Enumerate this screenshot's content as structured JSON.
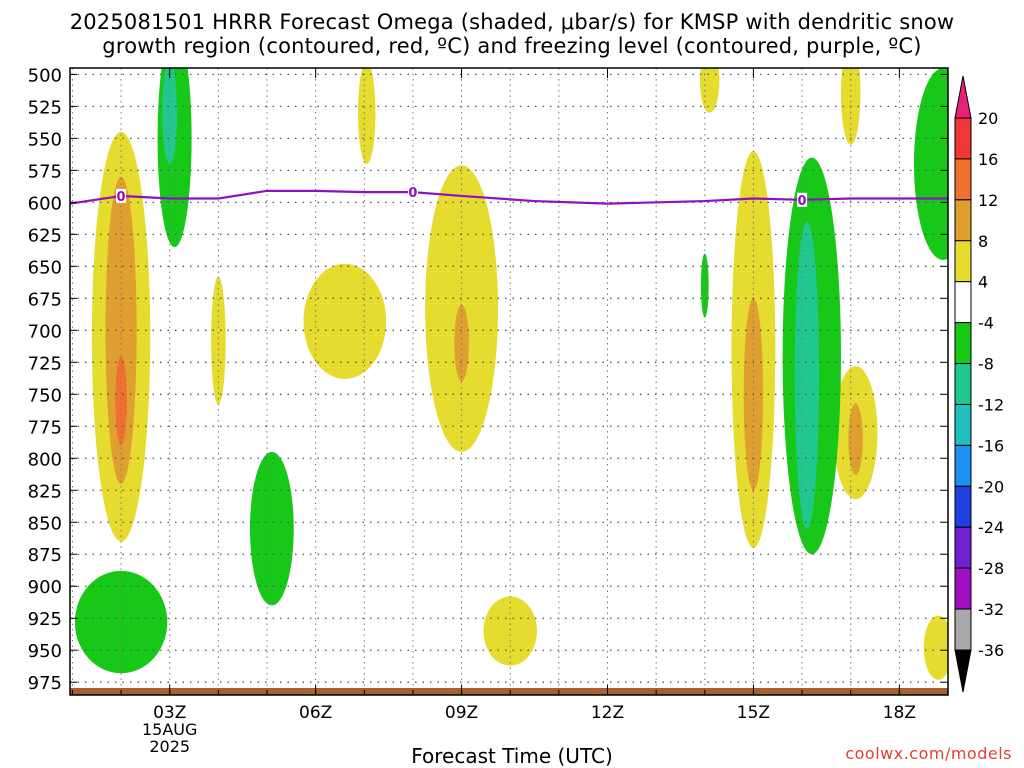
{
  "title_line1": "2025081501 HRRR Forecast Omega (shaded, μbar/s) for KMSP with dendritic snow",
  "title_line2": "growth region (contoured, red, ºC) and freezing level (contoured, purple, ºC)",
  "credit": "coolwx.com/models",
  "chart_data": {
    "type": "heatmap",
    "xlabel": "Forecast Time (UTC)",
    "ylabel": "",
    "x_range_hours_utc": [
      0.95,
      19.0
    ],
    "y_range_mb": [
      495,
      985
    ],
    "y_ticks": [
      500,
      525,
      550,
      575,
      600,
      625,
      650,
      675,
      700,
      725,
      750,
      775,
      800,
      825,
      850,
      875,
      900,
      925,
      950,
      975
    ],
    "x_ticks": [
      {
        "hour": 3,
        "label": "03Z",
        "sublabels": [
          "15AUG",
          "2025"
        ]
      },
      {
        "hour": 6,
        "label": "06Z",
        "sublabels": []
      },
      {
        "hour": 9,
        "label": "09Z",
        "sublabels": []
      },
      {
        "hour": 12,
        "label": "12Z",
        "sublabels": []
      },
      {
        "hour": 15,
        "label": "15Z",
        "sublabels": []
      },
      {
        "hour": 18,
        "label": "18Z",
        "sublabels": []
      }
    ],
    "grid": true,
    "colorbar": {
      "position": "right",
      "labels": [
        "20",
        "16",
        "12",
        "8",
        "4",
        "-4",
        "-8",
        "-12",
        "-16",
        "-20",
        "-24",
        "-28",
        "-32",
        "-36"
      ],
      "bins": [
        {
          "range": ">20",
          "color": "#e8207a"
        },
        {
          "range": "16 to 20",
          "color": "#ee3838"
        },
        {
          "range": "12 to 16",
          "color": "#f07030"
        },
        {
          "range": "8 to 12",
          "color": "#e0a030"
        },
        {
          "range": "4 to 8",
          "color": "#e6dc30"
        },
        {
          "range": "-4 to 4",
          "color": "#ffffff"
        },
        {
          "range": "-8 to -4",
          "color": "#18c818"
        },
        {
          "range": "-12 to -8",
          "color": "#20c890"
        },
        {
          "range": "-16 to -12",
          "color": "#20c0c0"
        },
        {
          "range": "-20 to -16",
          "color": "#2090f0"
        },
        {
          "range": "-24 to -20",
          "color": "#2040e0"
        },
        {
          "range": "-28 to -24",
          "color": "#7020d0"
        },
        {
          "range": "-32 to -28",
          "color": "#a010c0"
        },
        {
          "range": "-36 to -32",
          "color": "#a8a8a8"
        },
        {
          "range": "<-36",
          "color": "#000000"
        }
      ]
    },
    "freezing_level": {
      "color": "#9010c0",
      "label": "0",
      "label_hours": [
        2.0,
        8.0,
        16.0
      ],
      "points": [
        {
          "hour": 0.95,
          "mb": 601
        },
        {
          "hour": 2.0,
          "mb": 595
        },
        {
          "hour": 3.0,
          "mb": 597
        },
        {
          "hour": 4.0,
          "mb": 597
        },
        {
          "hour": 5.0,
          "mb": 591
        },
        {
          "hour": 6.0,
          "mb": 591
        },
        {
          "hour": 7.0,
          "mb": 592
        },
        {
          "hour": 8.0,
          "mb": 592
        },
        {
          "hour": 9.0,
          "mb": 595
        },
        {
          "hour": 10.5,
          "mb": 599
        },
        {
          "hour": 12.0,
          "mb": 601
        },
        {
          "hour": 14.0,
          "mb": 599
        },
        {
          "hour": 15.0,
          "mb": 597
        },
        {
          "hour": 16.0,
          "mb": 598
        },
        {
          "hour": 17.0,
          "mb": 597
        },
        {
          "hour": 19.0,
          "mb": 597
        }
      ]
    },
    "terrain_color": "#a86030",
    "shaded_areas": [
      {
        "bin": "4 to 8",
        "center": [
          2.0,
          705
        ],
        "half_width_h": 0.6,
        "half_height_mb": 160
      },
      {
        "bin": "8 to 12",
        "center": [
          2.0,
          700
        ],
        "half_width_h": 0.32,
        "half_height_mb": 120
      },
      {
        "bin": "12 to 16",
        "center": [
          2.0,
          755
        ],
        "half_width_h": 0.12,
        "half_height_mb": 35
      },
      {
        "bin": "4 to 8",
        "center": [
          4.0,
          708
        ],
        "half_width_h": 0.15,
        "half_height_mb": 50
      },
      {
        "bin": "4 to 8",
        "center": [
          6.6,
          693
        ],
        "half_width_h": 0.85,
        "half_height_mb": 45
      },
      {
        "bin": "4 to 8",
        "center": [
          9.0,
          683
        ],
        "half_width_h": 0.75,
        "half_height_mb": 112
      },
      {
        "bin": "8 to 12",
        "center": [
          9.0,
          710
        ],
        "half_width_h": 0.15,
        "half_height_mb": 30
      },
      {
        "bin": "4 to 8",
        "center": [
          10.0,
          935
        ],
        "half_width_h": 0.55,
        "half_height_mb": 27
      },
      {
        "bin": "4 to 8",
        "center": [
          7.05,
          530
        ],
        "half_width_h": 0.18,
        "half_height_mb": 40
      },
      {
        "bin": "4 to 8",
        "center": [
          14.1,
          505
        ],
        "half_width_h": 0.2,
        "half_height_mb": 25
      },
      {
        "bin": "4 to 8",
        "center": [
          15.0,
          715
        ],
        "half_width_h": 0.45,
        "half_height_mb": 155
      },
      {
        "bin": "8 to 12",
        "center": [
          15.0,
          750
        ],
        "half_width_h": 0.2,
        "half_height_mb": 75
      },
      {
        "bin": "4 to 8",
        "center": [
          17.0,
          515
        ],
        "half_width_h": 0.2,
        "half_height_mb": 40
      },
      {
        "bin": "4 to 8",
        "center": [
          17.1,
          780
        ],
        "half_width_h": 0.45,
        "half_height_mb": 52
      },
      {
        "bin": "8 to 12",
        "center": [
          17.1,
          785
        ],
        "half_width_h": 0.15,
        "half_height_mb": 28
      },
      {
        "bin": "4 to 8",
        "center": [
          18.8,
          948
        ],
        "half_width_h": 0.3,
        "half_height_mb": 25
      },
      {
        "bin": "-8 to -4",
        "center": [
          3.1,
          550
        ],
        "half_width_h": 0.35,
        "half_height_mb": 85
      },
      {
        "bin": "-12 to -8",
        "center": [
          3.0,
          530
        ],
        "half_width_h": 0.15,
        "half_height_mb": 40
      },
      {
        "bin": "-8 to -4",
        "center": [
          5.1,
          855
        ],
        "half_width_h": 0.45,
        "half_height_mb": 60
      },
      {
        "bin": "-8 to -4",
        "center": [
          2.0,
          928
        ],
        "half_width_h": 0.95,
        "half_height_mb": 40
      },
      {
        "bin": "-8 to -4",
        "center": [
          14.0,
          665
        ],
        "half_width_h": 0.08,
        "half_height_mb": 25
      },
      {
        "bin": "-8 to -4",
        "center": [
          16.2,
          720
        ],
        "half_width_h": 0.6,
        "half_height_mb": 155
      },
      {
        "bin": "-12 to -8",
        "center": [
          16.1,
          735
        ],
        "half_width_h": 0.25,
        "half_height_mb": 120
      },
      {
        "bin": "-8 to -4",
        "center": [
          18.9,
          570
        ],
        "half_width_h": 0.6,
        "half_height_mb": 75
      }
    ]
  }
}
